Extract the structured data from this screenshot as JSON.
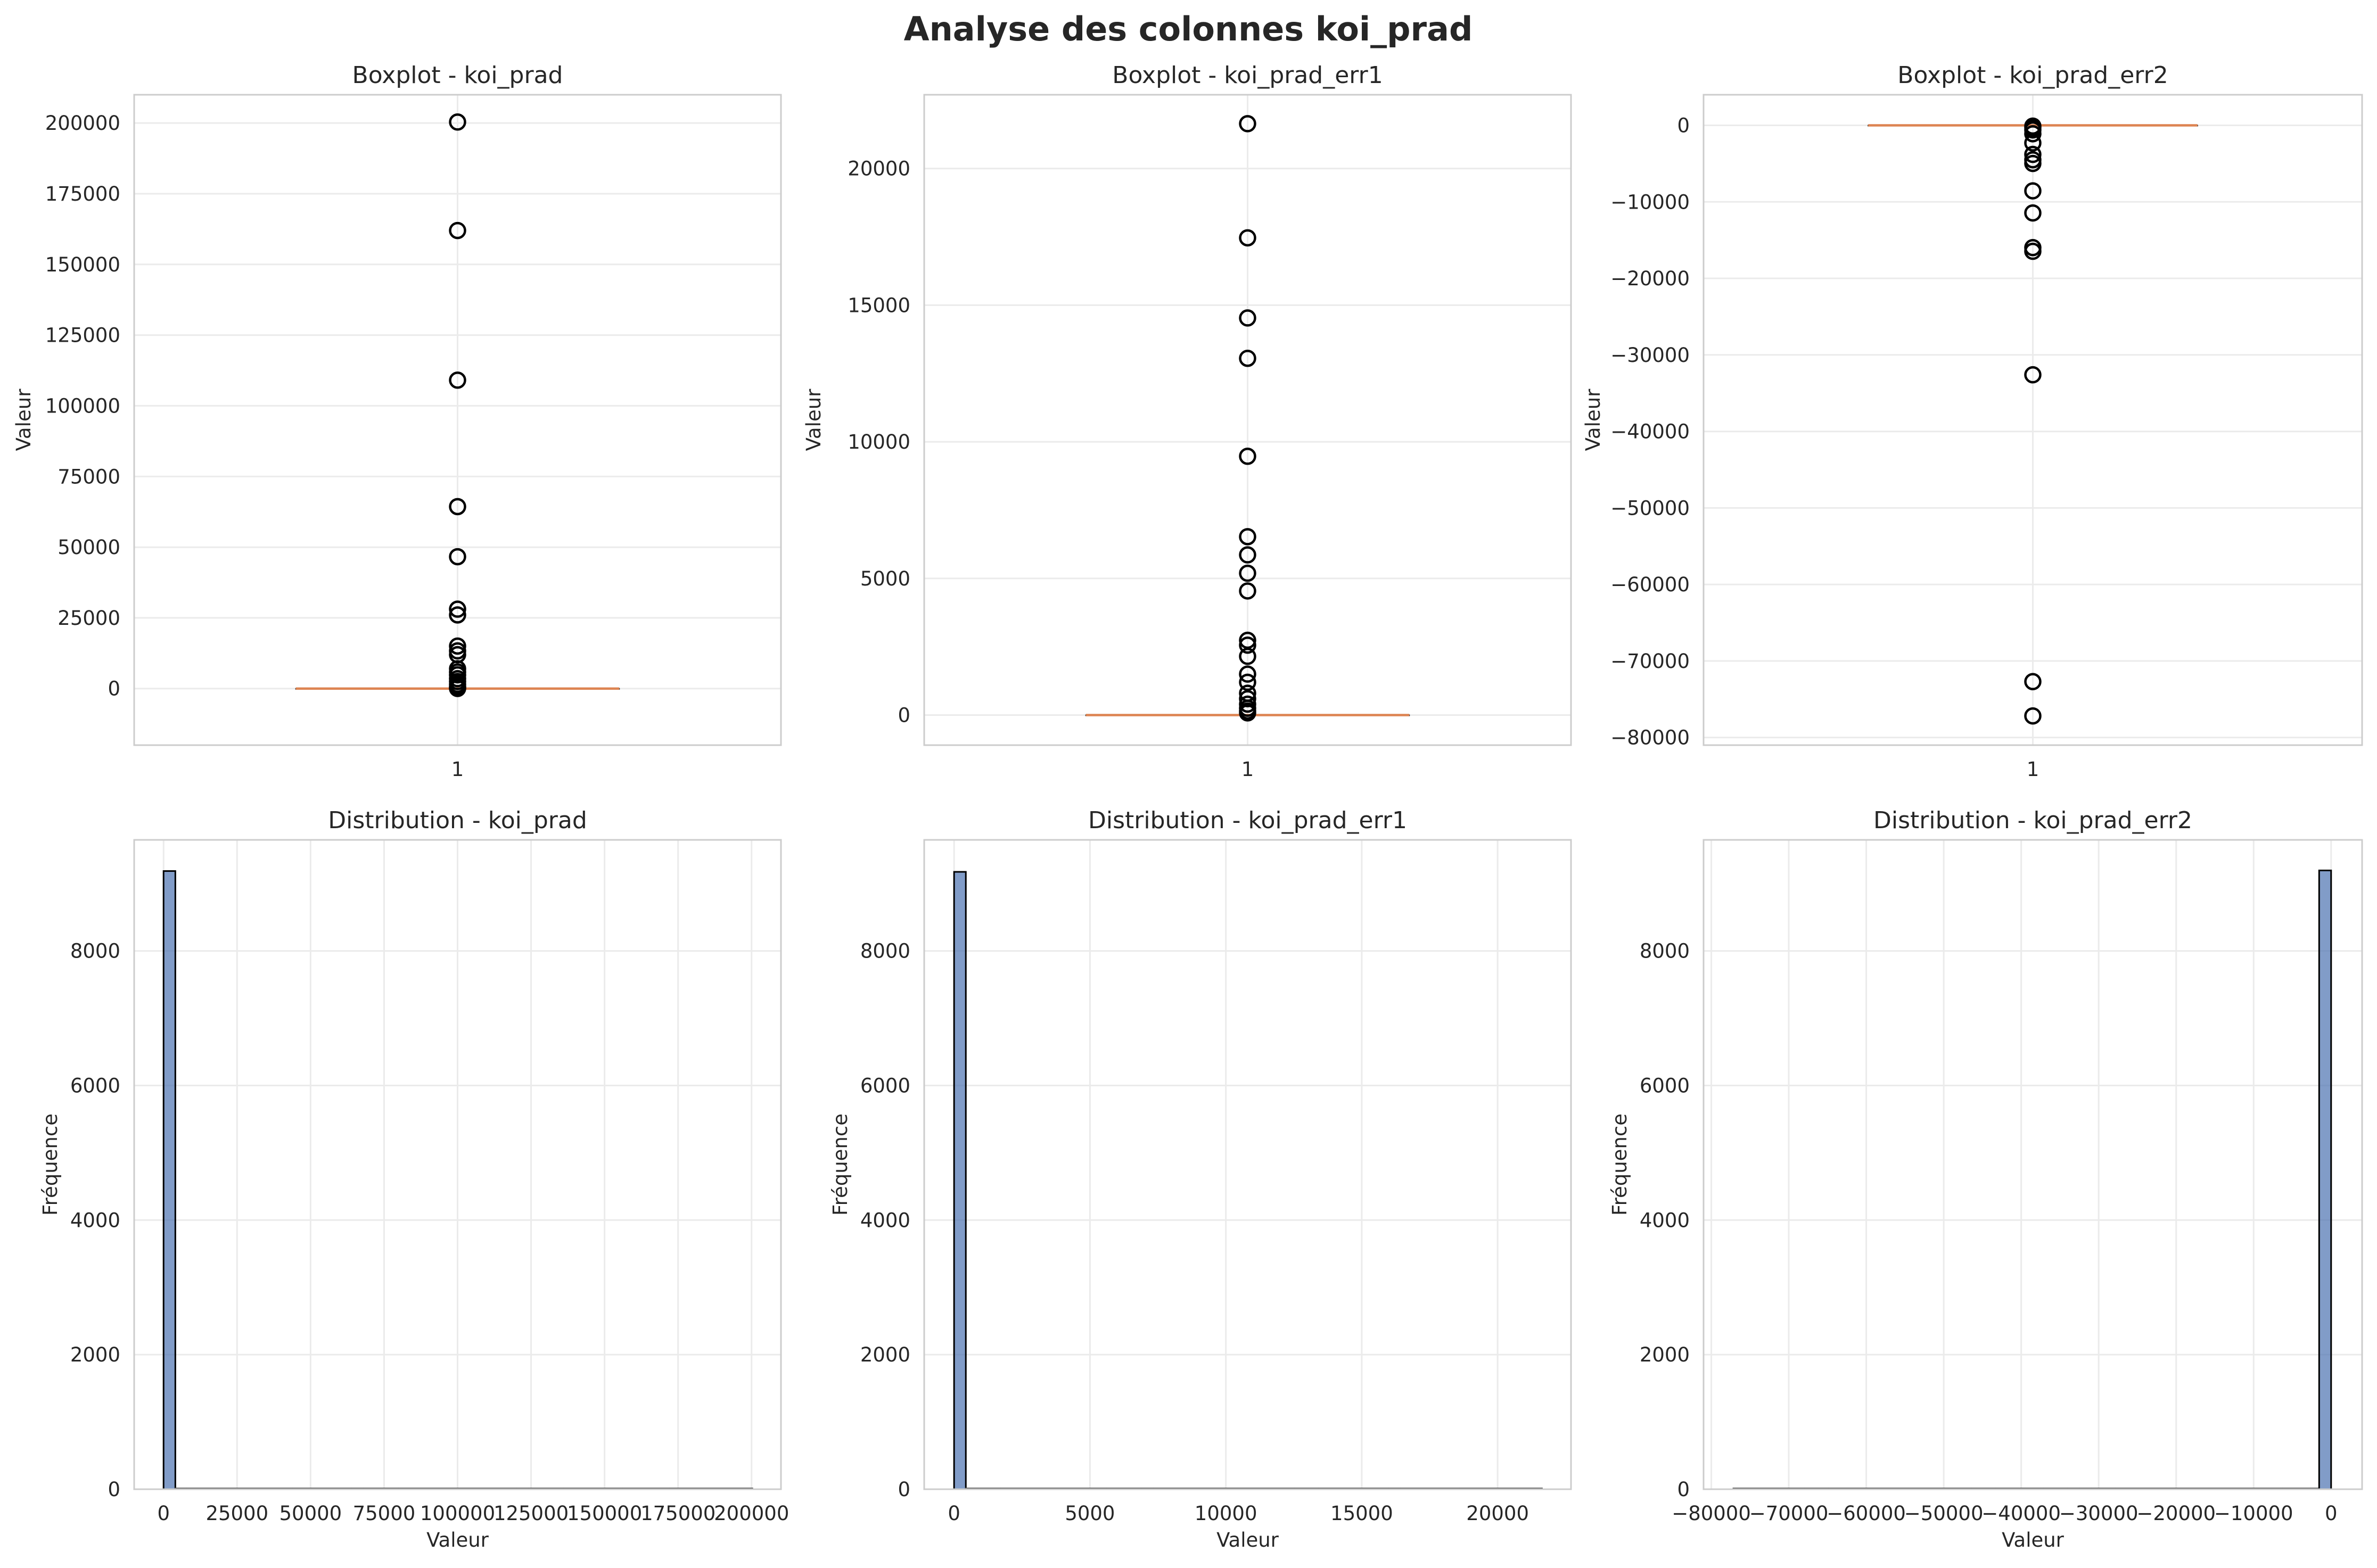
{
  "figure": {
    "title": "Analyse des colonnes koi_prad"
  },
  "chart_data": [
    {
      "type": "boxplot",
      "title": "Boxplot - koi_prad",
      "xlabel": "",
      "ylabel": "Valeur",
      "xticks": [
        "1"
      ],
      "ylim": [
        -20000,
        210000
      ],
      "yticks": [
        0,
        25000,
        50000,
        75000,
        100000,
        125000,
        150000,
        175000,
        200000
      ],
      "box": {
        "q1": 0.8,
        "median": 1.5,
        "q3": 3.0,
        "whisker_low": 0.1,
        "whisker_high": 6.5
      },
      "outliers": [
        200346,
        161990,
        109061,
        64351,
        46631,
        28084,
        26042,
        15033,
        13333,
        12000,
        7003,
        5888,
        4862,
        3500,
        2500,
        1500,
        800,
        400,
        150,
        50
      ],
      "colors": {
        "median": "#dd8452",
        "outlier": "#000000"
      },
      "grid": true
    },
    {
      "type": "boxplot",
      "title": "Boxplot - koi_prad_err1",
      "xlabel": "",
      "ylabel": "Valeur",
      "xticks": [
        "1"
      ],
      "ylim": [
        -1100,
        22700
      ],
      "yticks": [
        0,
        5000,
        10000,
        15000,
        20000
      ],
      "box": {
        "q1": 0.1,
        "median": 0.3,
        "q3": 0.8,
        "whisker_low": 0,
        "whisker_high": 1.9
      },
      "outliers": [
        21640,
        17464,
        14531,
        13055,
        9470,
        6528,
        5862,
        5190,
        4542,
        2738,
        2560,
        2150,
        1500,
        1200,
        800,
        600,
        400,
        250,
        150,
        80
      ],
      "colors": {
        "median": "#dd8452",
        "outlier": "#000000"
      },
      "grid": true
    },
    {
      "type": "boxplot",
      "title": "Boxplot - koi_prad_err2",
      "xlabel": "",
      "ylabel": "Valeur",
      "xticks": [
        "1"
      ],
      "ylim": [
        -81000,
        4000
      ],
      "yticks": [
        0,
        -10000,
        -20000,
        -30000,
        -40000,
        -50000,
        -60000,
        -70000,
        -80000
      ],
      "box": {
        "q1": -0.7,
        "median": -0.3,
        "q3": -0.1,
        "whisker_low": -1.6,
        "whisker_high": 0
      },
      "outliers": [
        -77180,
        -72700,
        -32600,
        -16460,
        -15980,
        -11450,
        -8560,
        -4980,
        -4500,
        -3800,
        -2300,
        -1100,
        -600,
        -300,
        -100
      ],
      "colors": {
        "median": "#dd8452",
        "outlier": "#000000"
      },
      "grid": true
    },
    {
      "type": "histogram",
      "title": "Distribution - koi_prad",
      "xlabel": "Valeur",
      "ylabel": "Fréquence",
      "xlim": [
        -10000,
        210000
      ],
      "ylim": [
        0,
        9650
      ],
      "xticks": [
        0,
        25000,
        50000,
        75000,
        100000,
        125000,
        150000,
        175000,
        200000
      ],
      "xtick_labels": [
        "0",
        "25000",
        "50000",
        "75000",
        "100000",
        "125000",
        "150000",
        "175000",
        "200000"
      ],
      "yticks": [
        0,
        2000,
        4000,
        6000,
        8000
      ],
      "bin_range": [
        0,
        200346
      ],
      "bins": 50,
      "counts": [
        9187,
        5,
        3,
        1,
        1,
        0,
        0,
        1,
        0,
        0,
        0,
        0,
        0,
        0,
        0,
        0,
        1,
        0,
        0,
        0,
        0,
        0,
        0,
        0,
        0,
        0,
        0,
        1,
        0,
        0,
        0,
        0,
        0,
        0,
        0,
        0,
        0,
        0,
        0,
        1,
        0,
        0,
        0,
        0,
        0,
        0,
        0,
        0,
        0,
        1
      ],
      "colors": {
        "bar": "#4c72b0"
      },
      "grid": true
    },
    {
      "type": "histogram",
      "title": "Distribution - koi_prad_err1",
      "xlabel": "Valeur",
      "ylabel": "Fréquence",
      "xlim": [
        -1100,
        22700
      ],
      "ylim": [
        0,
        9650
      ],
      "xticks": [
        0,
        5000,
        10000,
        15000,
        20000
      ],
      "xtick_labels": [
        "0",
        "5000",
        "10000",
        "15000",
        "20000"
      ],
      "yticks": [
        0,
        2000,
        4000,
        6000,
        8000
      ],
      "bin_range": [
        0,
        21640
      ],
      "bins": 50,
      "counts": [
        9175,
        12,
        5,
        2,
        0,
        0,
        1,
        1,
        0,
        0,
        1,
        1,
        1,
        1,
        0,
        1,
        0,
        0,
        0,
        0,
        0,
        1,
        0,
        0,
        0,
        0,
        0,
        0,
        0,
        0,
        1,
        1,
        0,
        1,
        0,
        0,
        0,
        0,
        0,
        0,
        1,
        0,
        0,
        0,
        0,
        0,
        0,
        0,
        0,
        1
      ],
      "colors": {
        "bar": "#4c72b0"
      },
      "grid": true
    },
    {
      "type": "histogram",
      "title": "Distribution - koi_prad_err2",
      "xlabel": "Valeur",
      "ylabel": "Fréquence",
      "xlim": [
        -81000,
        4000
      ],
      "ylim": [
        0,
        9650
      ],
      "xticks": [
        -80000,
        -70000,
        -60000,
        -50000,
        -40000,
        -30000,
        -20000,
        -10000,
        0
      ],
      "xtick_labels": [
        "−80000",
        "−70000",
        "−60000",
        "−50000",
        "−40000",
        "−30000",
        "−20000",
        "−10000",
        "0"
      ],
      "yticks": [
        0,
        2000,
        4000,
        6000,
        8000
      ],
      "bin_range": [
        -77180,
        0
      ],
      "bins": 50,
      "counts": [
        1,
        1,
        0,
        0,
        0,
        0,
        0,
        0,
        0,
        0,
        0,
        0,
        0,
        0,
        0,
        0,
        0,
        0,
        0,
        0,
        0,
        0,
        0,
        0,
        0,
        0,
        0,
        0,
        0,
        1,
        0,
        0,
        0,
        0,
        0,
        0,
        0,
        0,
        0,
        2,
        0,
        0,
        1,
        0,
        0,
        1,
        2,
        1,
        3,
        9196
      ],
      "colors": {
        "bar": "#4c72b0"
      },
      "grid": true
    }
  ]
}
